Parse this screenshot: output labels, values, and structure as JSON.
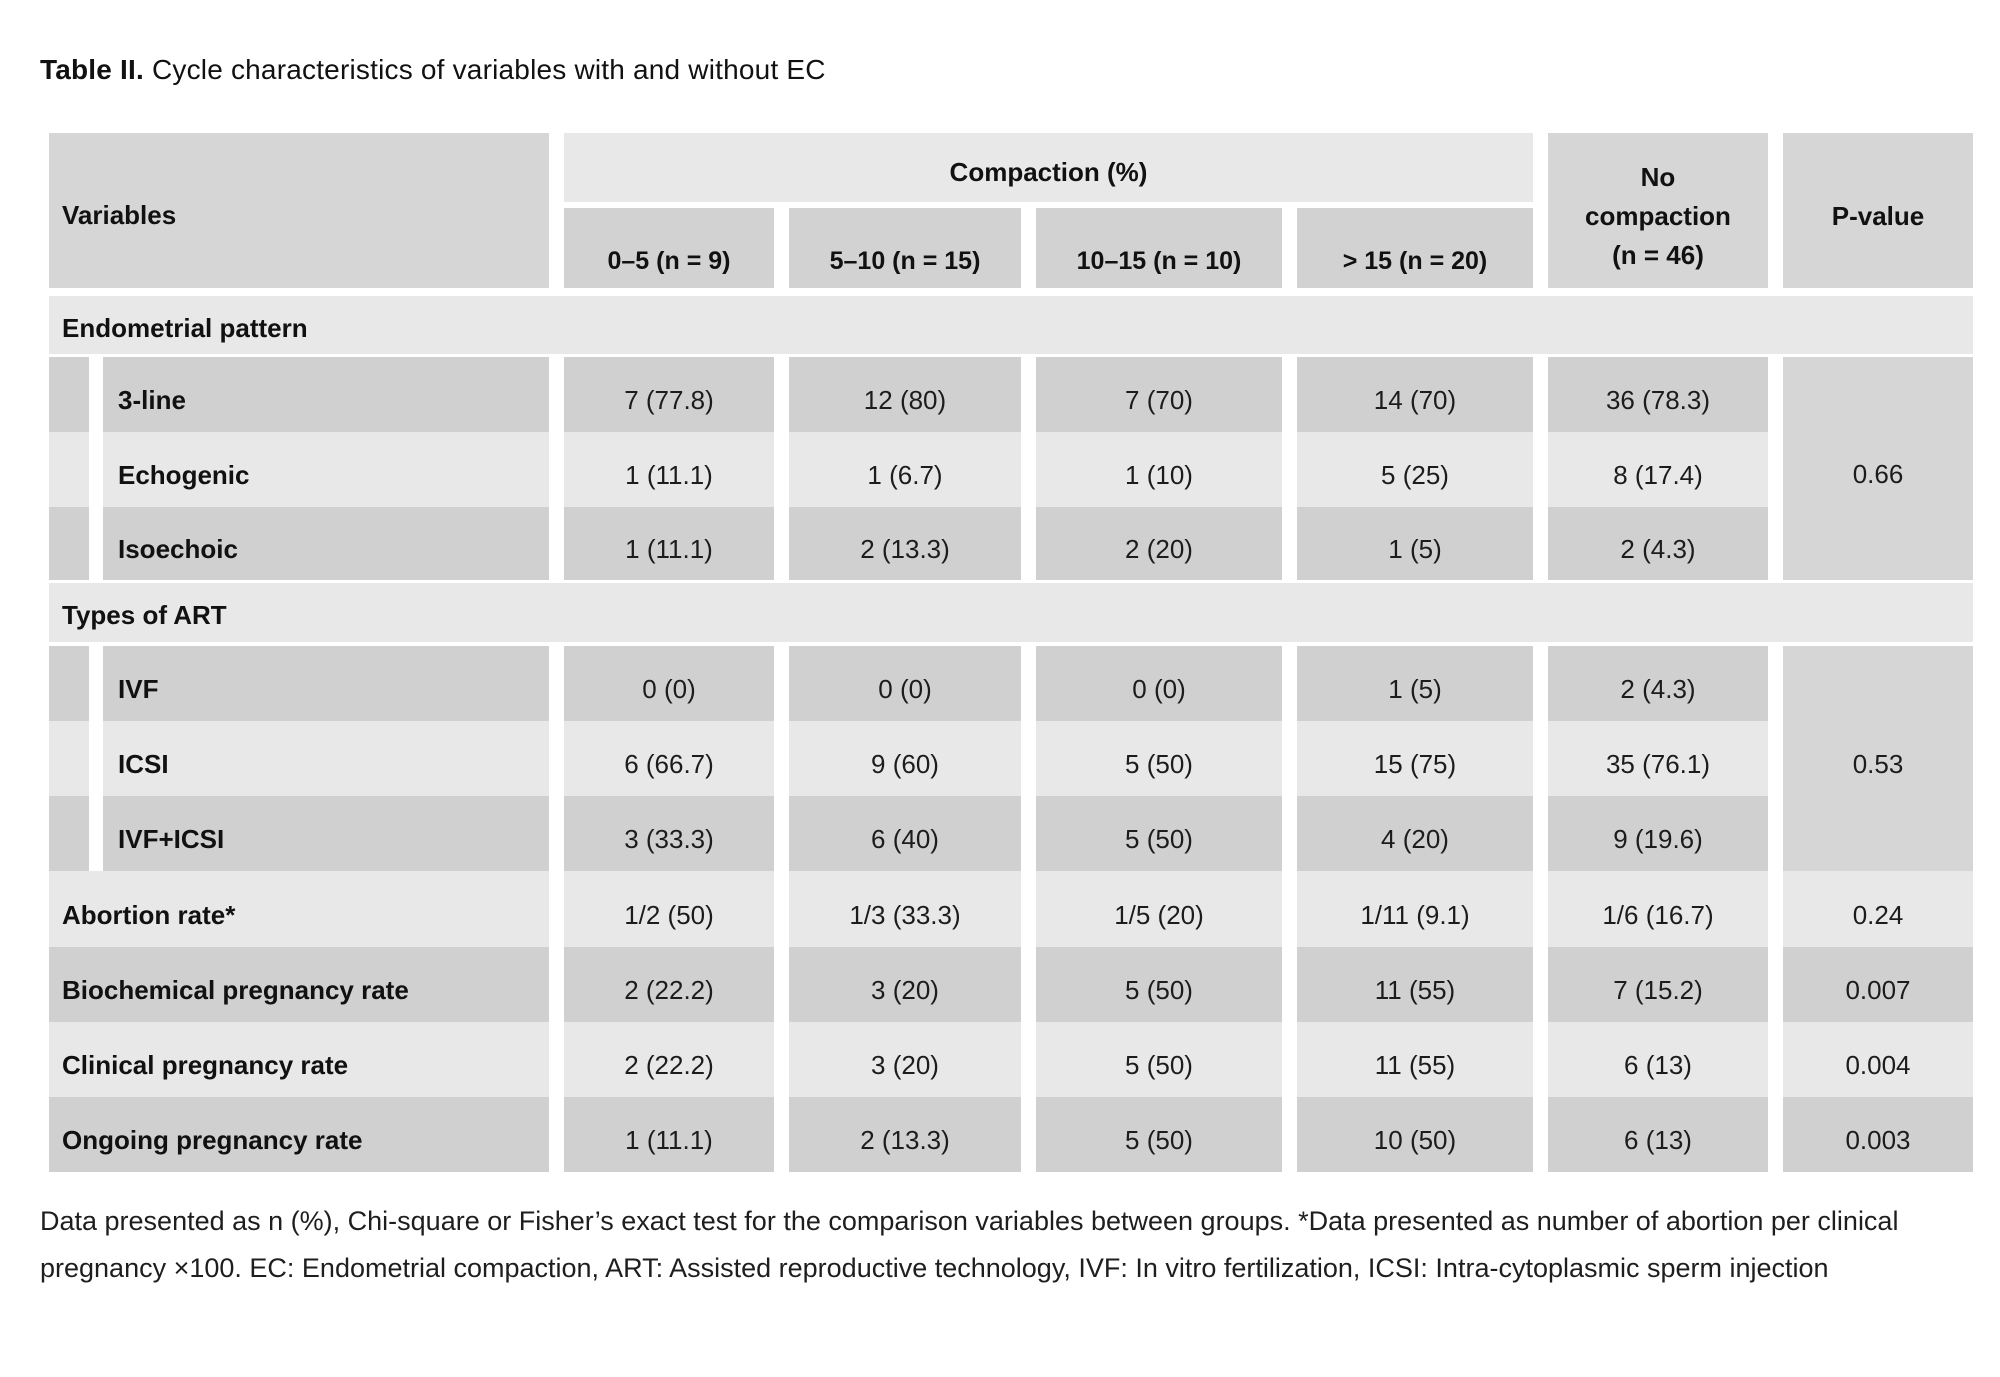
{
  "t": {
    "title_bold": "Table II.",
    "title_rest": " Cycle characteristics of variables with and without EC",
    "header": {
      "variables": "Variables",
      "compaction": "Compaction (%)",
      "sub": [
        "0–5 (n = 9)",
        "5–10 (n = 15)",
        "10–15 (n = 10)",
        "> 15 (n = 20)"
      ],
      "no_compaction": "No compaction (n = 46)",
      "p_value": "P-value"
    },
    "sec1": {
      "label": "Endometrial pattern",
      "p": "0.66",
      "rows": [
        {
          "label": "3-line",
          "v": [
            "7 (77.8)",
            "12 (80)",
            "7 (70)",
            "14 (70)",
            "36 (78.3)"
          ]
        },
        {
          "label": "Echogenic",
          "v": [
            "1 (11.1)",
            "1 (6.7)",
            "1 (10)",
            "5 (25)",
            "8 (17.4)"
          ]
        },
        {
          "label": "Isoechoic",
          "v": [
            "1 (11.1)",
            "2 (13.3)",
            "2 (20)",
            "1 (5)",
            "2 (4.3)"
          ]
        }
      ]
    },
    "sec2": {
      "label": "Types of ART",
      "p": "0.53",
      "rows": [
        {
          "label": "IVF",
          "v": [
            "0 (0)",
            "0 (0)",
            "0 (0)",
            "1 (5)",
            "2 (4.3)"
          ]
        },
        {
          "label": "ICSI",
          "v": [
            "6 (66.7)",
            "9 (60)",
            "5 (50)",
            "15 (75)",
            "35 (76.1)"
          ]
        },
        {
          "label": "IVF+ICSI",
          "v": [
            "3 (33.3)",
            "6 (40)",
            "5 (50)",
            "4 (20)",
            "9 (19.6)"
          ]
        }
      ]
    },
    "rows": [
      {
        "label": "Abortion rate*",
        "v": [
          "1/2 (50)",
          "1/3 (33.3)",
          "1/5 (20)",
          "1/11 (9.1)",
          "1/6 (16.7)"
        ],
        "p": "0.24"
      },
      {
        "label": "Biochemical pregnancy rate",
        "v": [
          "2 (22.2)",
          "3 (20)",
          "5 (50)",
          "11 (55)",
          "7 (15.2)"
        ],
        "p": "0.007"
      },
      {
        "label": "Clinical pregnancy rate",
        "v": [
          "2 (22.2)",
          "3 (20)",
          "5 (50)",
          "11 (55)",
          "6 (13)"
        ],
        "p": "0.004"
      },
      {
        "label": "Ongoing pregnancy rate",
        "v": [
          "1 (11.1)",
          "2 (13.3)",
          "5 (50)",
          "10 (50)",
          "6 (13)"
        ],
        "p": "0.003"
      }
    ],
    "footnote": "Data presented as n (%), Chi-square or Fisher’s exact test for the comparison variables between groups. *Data presented as number of abortion per clinical pregnancy ×100. EC: Endometrial compaction, ART: Assisted reproductive technology, IVF: In vitro fertilization, ICSI: Intra-cytoplasmic sperm injection"
  }
}
